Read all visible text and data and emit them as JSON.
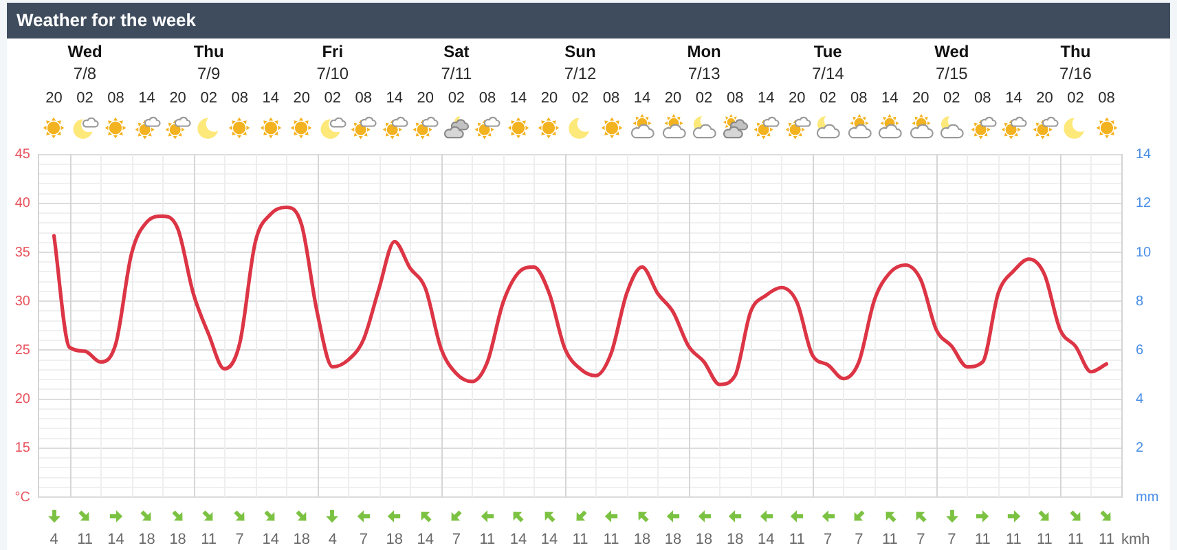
{
  "chart_data": {
    "type": "line",
    "title": "Weather for the week",
    "categories": [
      "20",
      null,
      "Wed\n7/8\n02",
      null,
      "08",
      null,
      "14",
      null,
      "20",
      null,
      "Thu\n7/9\n02",
      null,
      "08",
      null,
      "14",
      null,
      "20",
      null,
      "Fri\n7/10\n02",
      null,
      "08",
      null,
      "14",
      null,
      "20",
      null,
      "Sat\n7/11\n02",
      null,
      "08",
      null,
      "14",
      null,
      "20",
      null,
      "Sun\n7/12\n02",
      null,
      "08",
      null,
      "14",
      null,
      "20",
      null,
      "Mon\n7/13\n02",
      null,
      "08",
      null,
      "14",
      null,
      "20",
      null,
      "Tue\n7/14\n02",
      null,
      "08",
      null,
      "14",
      null,
      "20",
      null,
      "Wed\n7/15\n02",
      null,
      "08",
      null,
      "14",
      null,
      "20",
      null,
      "Thu\n7/16\n02",
      null,
      "08"
    ],
    "ylim": [
      10,
      45
    ],
    "yticks": [
      {
        "value": 10,
        "label": "°C"
      },
      {
        "value": 11,
        "label": null
      },
      {
        "value": 12,
        "label": null
      },
      {
        "value": 13,
        "label": null
      },
      {
        "value": 14,
        "label": null
      },
      15,
      {
        "value": 16,
        "label": null
      },
      {
        "value": 17,
        "label": null
      },
      {
        "value": 18,
        "label": null
      },
      {
        "value": 19,
        "label": null
      },
      20,
      {
        "value": 21,
        "label": null
      },
      {
        "value": 22,
        "label": null
      },
      {
        "value": 23,
        "label": null
      },
      {
        "value": 24,
        "label": null
      },
      25,
      {
        "value": 26,
        "label": null
      },
      {
        "value": 27,
        "label": null
      },
      {
        "value": 28,
        "label": null
      },
      {
        "value": 29,
        "label": null
      },
      30,
      {
        "value": 31,
        "label": null
      },
      {
        "value": 32,
        "label": null
      },
      {
        "value": 33,
        "label": null
      },
      {
        "value": 34,
        "label": null
      },
      35,
      {
        "value": 36,
        "label": null
      },
      {
        "value": 37,
        "label": null
      },
      {
        "value": 38,
        "label": null
      },
      {
        "value": 39,
        "label": null
      },
      40,
      {
        "value": 41,
        "label": null
      },
      {
        "value": 42,
        "label": null
      },
      {
        "value": 43,
        "label": null
      },
      {
        "value": 44,
        "label": null
      },
      45
    ],
    "y2lim": [
      0,
      14
    ],
    "y2ticks": [
      {
        "value": 0,
        "label": "mm"
      },
      2,
      4,
      6,
      8,
      10,
      12,
      14
    ],
    "grid": true,
    "marker": "none",
    "series": [
      {
        "color": "#dc3545",
        "values": [
          36.7,
          25.3,
          24.9,
          23.8,
          25.7,
          34.8,
          38.1,
          38.7,
          37.4,
          30.8,
          26.6,
          23.1,
          25.7,
          36.0,
          38.9,
          39.6,
          37.8,
          28.9,
          23.3,
          24.0,
          26.1,
          31.3,
          36.1,
          33.4,
          31.3,
          25.2,
          22.6,
          21.8,
          23.8,
          29.8,
          32.9,
          33.5,
          30.8,
          25.2,
          23.1,
          22.4,
          24.7,
          30.8,
          33.5,
          30.8,
          28.9,
          25.4,
          23.8,
          21.5,
          22.4,
          28.9,
          30.6,
          31.4,
          29.9,
          24.5,
          23.5,
          22.1,
          23.8,
          30.1,
          32.9,
          33.7,
          32.2,
          27.1,
          25.4,
          23.3,
          23.8,
          30.8,
          33.1,
          34.3,
          32.7,
          27.1,
          25.4,
          22.8,
          23.6
        ]
      }
    ],
    "annotations": [
      "4",
      "11",
      "14",
      "18",
      "18",
      "11",
      "7",
      "14",
      "18",
      "4",
      "7",
      "18",
      "14",
      "7",
      "11",
      "14",
      "14",
      "11",
      "11",
      "18",
      "18",
      "18",
      "18",
      "14",
      "11",
      "7",
      "7",
      "11",
      "7",
      "7",
      "11",
      "11",
      "11",
      "11",
      "11",
      "kmh"
    ]
  }
}
